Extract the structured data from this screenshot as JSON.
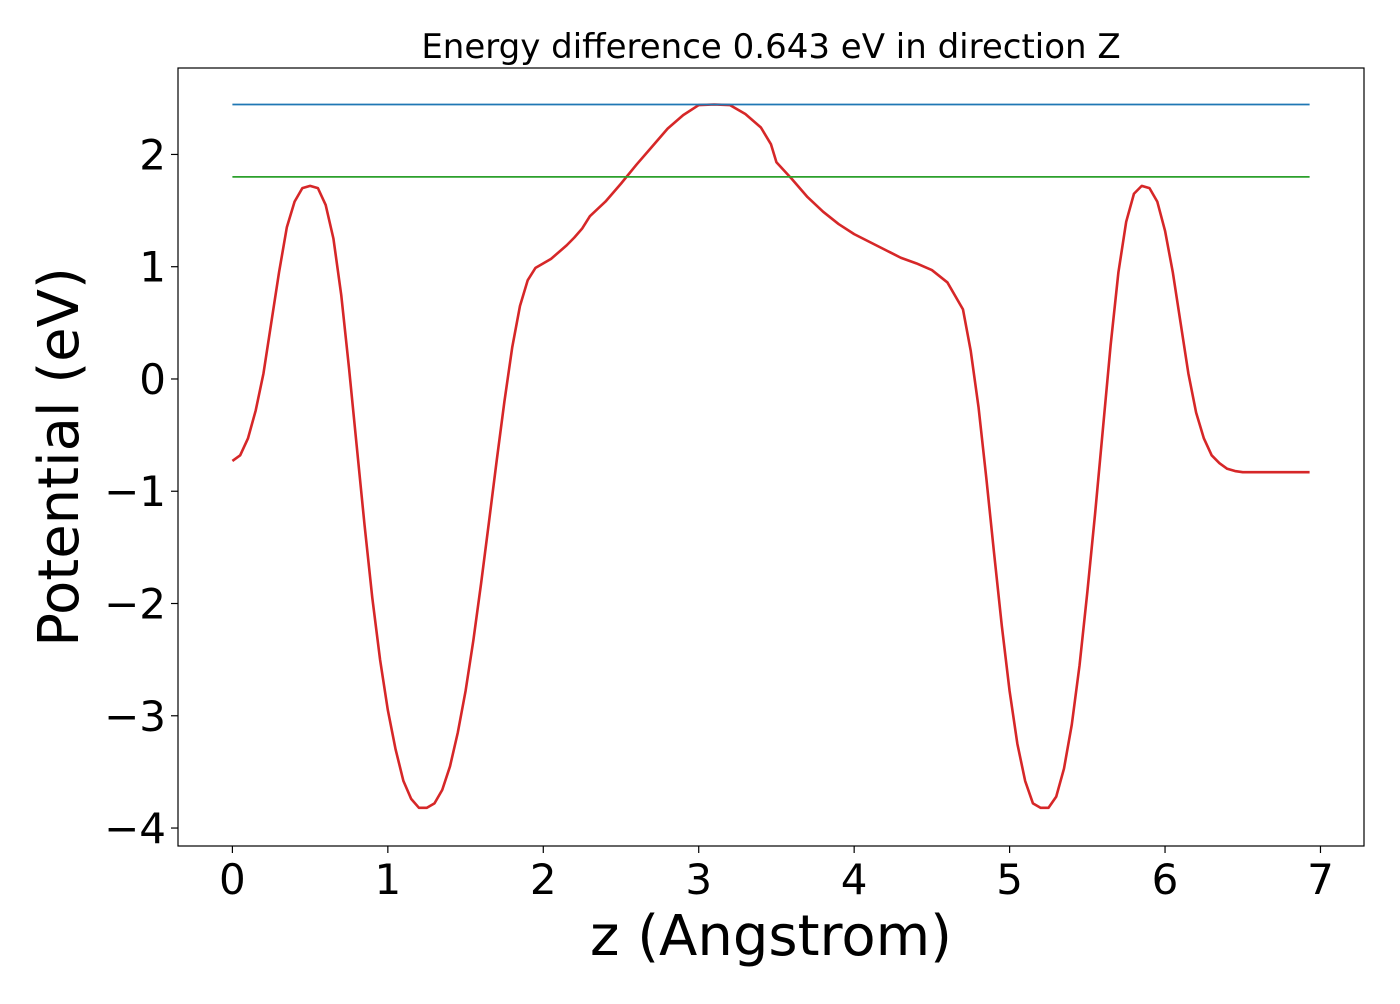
{
  "chart_data": {
    "type": "line",
    "title": "Energy difference 0.643 eV in direction Z",
    "xlabel": "z (Angstrom)",
    "ylabel": "Potential (eV)",
    "xlim": [
      -0.35,
      7.28
    ],
    "ylim": [
      -4.16,
      2.77
    ],
    "xticks": [
      0,
      1,
      2,
      3,
      4,
      5,
      6,
      7
    ],
    "xtick_labels": [
      "0",
      "1",
      "2",
      "3",
      "4",
      "5",
      "6",
      "7"
    ],
    "yticks": [
      -4,
      -3,
      -2,
      -1,
      0,
      1,
      2
    ],
    "ytick_labels": [
      "−4",
      "−3",
      "−2",
      "−1",
      "0",
      "1",
      "2"
    ],
    "grid": false,
    "series": [
      {
        "color": "#d62728",
        "x": [
          0.0,
          0.05,
          0.1,
          0.15,
          0.2,
          0.25,
          0.3,
          0.35,
          0.4,
          0.45,
          0.5,
          0.55,
          0.6,
          0.65,
          0.7,
          0.75,
          0.8,
          0.85,
          0.9,
          0.95,
          1.0,
          1.05,
          1.1,
          1.15,
          1.2,
          1.25,
          1.3,
          1.35,
          1.4,
          1.45,
          1.5,
          1.55,
          1.6,
          1.65,
          1.7,
          1.75,
          1.8,
          1.85,
          1.9,
          1.95,
          2.0,
          2.05,
          2.1,
          2.15,
          2.2,
          2.25,
          2.3,
          2.4,
          2.5,
          2.6,
          2.7,
          2.8,
          2.9,
          3.0,
          3.1,
          3.2,
          3.3,
          3.4,
          3.465,
          3.5,
          3.6,
          3.7,
          3.8,
          3.9,
          4.0,
          4.1,
          4.2,
          4.3,
          4.4,
          4.5,
          4.6,
          4.7,
          4.75,
          4.8,
          4.85,
          4.9,
          4.95,
          5.0,
          5.05,
          5.1,
          5.15,
          5.2,
          5.25,
          5.3,
          5.35,
          5.4,
          5.45,
          5.5,
          5.55,
          5.6,
          5.65,
          5.7,
          5.75,
          5.8,
          5.85,
          5.9,
          5.95,
          6.0,
          6.05,
          6.1,
          6.15,
          6.2,
          6.25,
          6.3,
          6.35,
          6.4,
          6.45,
          6.5,
          6.55,
          6.6,
          6.65,
          6.7,
          6.75,
          6.8,
          6.85,
          6.9,
          6.93
        ],
        "y": [
          -0.73,
          -0.68,
          -0.53,
          -0.28,
          0.05,
          0.5,
          0.95,
          1.35,
          1.58,
          1.7,
          1.72,
          1.7,
          1.55,
          1.25,
          0.75,
          0.1,
          -0.6,
          -1.3,
          -1.95,
          -2.5,
          -2.95,
          -3.3,
          -3.58,
          -3.74,
          -3.82,
          -3.82,
          -3.78,
          -3.66,
          -3.45,
          -3.15,
          -2.78,
          -2.33,
          -1.82,
          -1.28,
          -0.73,
          -0.2,
          0.28,
          0.65,
          0.88,
          0.99,
          1.03,
          1.07,
          1.13,
          1.19,
          1.26,
          1.34,
          1.45,
          1.58,
          1.74,
          1.91,
          2.07,
          2.23,
          2.35,
          2.44,
          2.445,
          2.44,
          2.36,
          2.24,
          2.09,
          1.93,
          1.78,
          1.62,
          1.49,
          1.38,
          1.29,
          1.22,
          1.15,
          1.08,
          1.03,
          0.97,
          0.86,
          0.62,
          0.25,
          -0.25,
          -0.88,
          -1.55,
          -2.2,
          -2.78,
          -3.25,
          -3.58,
          -3.78,
          -3.82,
          -3.82,
          -3.72,
          -3.47,
          -3.08,
          -2.55,
          -1.9,
          -1.2,
          -0.45,
          0.3,
          0.95,
          1.4,
          1.65,
          1.72,
          1.7,
          1.58,
          1.32,
          0.95,
          0.5,
          0.05,
          -0.3,
          -0.53,
          -0.68,
          -0.75,
          -0.8,
          -0.82,
          -0.83,
          -0.83,
          -0.83,
          -0.83,
          -0.83,
          -0.83,
          -0.83,
          -0.83,
          -0.83,
          -0.83
        ]
      },
      {
        "color": "#1f77b4",
        "x": [
          0.0,
          6.93
        ],
        "y": [
          2.445,
          2.445
        ]
      },
      {
        "color": "#2ca02c",
        "x": [
          0.0,
          6.93
        ],
        "y": [
          1.8,
          1.8
        ]
      }
    ]
  }
}
